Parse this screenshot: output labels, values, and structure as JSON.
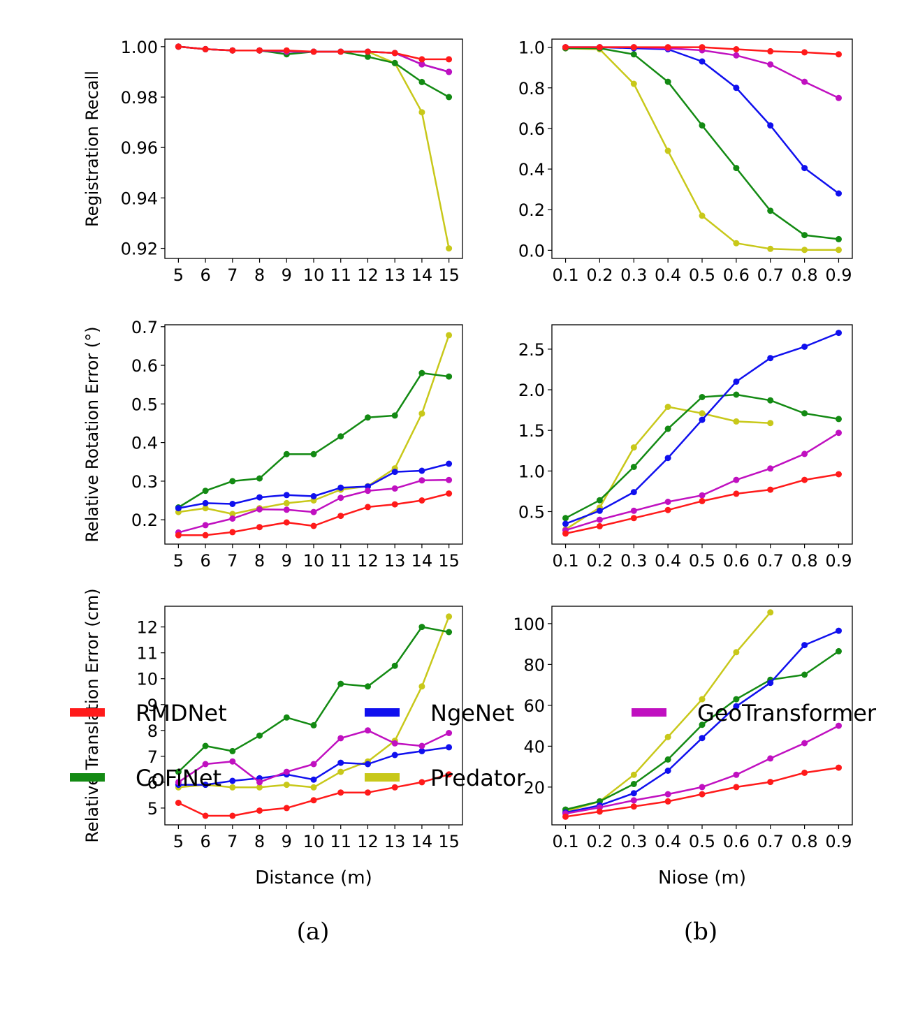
{
  "colors": {
    "RMDNet": "#ff1a1a",
    "CoFiNet": "#138a13",
    "NgeNet": "#1010ee",
    "Predator": "#c8c81a",
    "GeoTransformer": "#c010c0"
  },
  "figure": {
    "subcaption_a": "(a)",
    "subcaption_b": "(b)"
  },
  "legend": [
    {
      "label": "RMDNet",
      "color": "#ff1a1a"
    },
    {
      "label": "NgeNet",
      "color": "#1010ee"
    },
    {
      "label": "GeoTransformer",
      "color": "#c010c0"
    },
    {
      "label": "CoFiNet",
      "color": "#138a13"
    },
    {
      "label": "Predator",
      "color": "#c8c81a"
    }
  ],
  "chart_data": [
    {
      "id": "a-recall",
      "type": "line",
      "xlabel": "",
      "ylabel": "Registration Recall",
      "x": [
        5,
        6,
        7,
        8,
        9,
        10,
        11,
        12,
        13,
        14,
        15
      ],
      "xticks": [
        "5",
        "6",
        "7",
        "8",
        "9",
        "10",
        "11",
        "12",
        "13",
        "14",
        "15"
      ],
      "ylim": [
        0.916,
        1.003
      ],
      "yticks": [
        "0.92",
        "0.94",
        "0.96",
        "0.98",
        "1.00"
      ],
      "ytick_values": [
        0.92,
        0.94,
        0.96,
        0.98,
        1.0
      ],
      "series": [
        {
          "name": "Predator",
          "values": [
            1.0,
            0.999,
            0.9985,
            0.9985,
            0.998,
            0.998,
            0.998,
            0.998,
            0.9935,
            0.974,
            0.92
          ]
        },
        {
          "name": "CoFiNet",
          "values": [
            1.0,
            0.999,
            0.9985,
            0.9985,
            0.997,
            0.998,
            0.998,
            0.996,
            0.9935,
            0.986,
            0.98
          ]
        },
        {
          "name": "NgeNet",
          "values": [
            1.0,
            0.999,
            0.9985,
            0.9985,
            0.998,
            0.998,
            0.998,
            0.998,
            0.9975,
            0.993,
            0.99
          ]
        },
        {
          "name": "GeoTransformer",
          "values": [
            1.0,
            0.999,
            0.9985,
            0.9985,
            0.998,
            0.998,
            0.998,
            0.998,
            0.9975,
            0.993,
            0.99
          ]
        },
        {
          "name": "RMDNet",
          "values": [
            1.0,
            0.999,
            0.9985,
            0.9985,
            0.9985,
            0.998,
            0.998,
            0.998,
            0.9975,
            0.995,
            0.995
          ]
        }
      ]
    },
    {
      "id": "b-recall",
      "type": "line",
      "xlabel": "",
      "ylabel": "",
      "x": [
        0.1,
        0.2,
        0.3,
        0.4,
        0.5,
        0.6,
        0.7,
        0.8,
        0.9
      ],
      "xticks": [
        "0.1",
        "0.2",
        "0.3",
        "0.4",
        "0.5",
        "0.6",
        "0.7",
        "0.8",
        "0.9"
      ],
      "ylim": [
        -0.04,
        1.04
      ],
      "yticks": [
        "0.0",
        "0.2",
        "0.4",
        "0.6",
        "0.8",
        "1.0"
      ],
      "ytick_values": [
        0,
        0.2,
        0.4,
        0.6,
        0.8,
        1.0
      ],
      "series": [
        {
          "name": "Predator",
          "values": [
            0.995,
            0.99,
            0.82,
            0.49,
            0.17,
            0.035,
            0.007,
            0.002,
            0.002
          ]
        },
        {
          "name": "CoFiNet",
          "values": [
            0.995,
            0.995,
            0.965,
            0.83,
            0.615,
            0.405,
            0.195,
            0.075,
            0.055
          ]
        },
        {
          "name": "NgeNet",
          "values": [
            1.0,
            1.0,
            0.995,
            0.99,
            0.93,
            0.8,
            0.615,
            0.405,
            0.28
          ]
        },
        {
          "name": "GeoTransformer",
          "values": [
            1.0,
            1.0,
            1.0,
            0.995,
            0.985,
            0.96,
            0.915,
            0.83,
            0.75
          ]
        },
        {
          "name": "RMDNet",
          "values": [
            1.0,
            1.0,
            1.0,
            1.0,
            1.0,
            0.99,
            0.98,
            0.975,
            0.965
          ]
        }
      ]
    },
    {
      "id": "a-rre",
      "type": "line",
      "xlabel": "",
      "ylabel": "Relative Rotation Error (°)",
      "x": [
        5,
        6,
        7,
        8,
        9,
        10,
        11,
        12,
        13,
        14,
        15
      ],
      "xticks": [
        "5",
        "6",
        "7",
        "8",
        "9",
        "10",
        "11",
        "12",
        "13",
        "14",
        "15"
      ],
      "ylim": [
        0.137,
        0.705
      ],
      "yticks": [
        "0.2",
        "0.3",
        "0.4",
        "0.5",
        "0.6",
        "0.7"
      ],
      "ytick_values": [
        0.2,
        0.3,
        0.4,
        0.5,
        0.6,
        0.7
      ],
      "series": [
        {
          "name": "Predator",
          "values": [
            0.22,
            0.23,
            0.215,
            0.23,
            0.243,
            0.25,
            0.278,
            0.287,
            0.333,
            0.475,
            0.678
          ]
        },
        {
          "name": "CoFiNet",
          "values": [
            0.232,
            0.275,
            0.3,
            0.307,
            0.37,
            0.37,
            0.416,
            0.465,
            0.47,
            0.58,
            0.571
          ]
        },
        {
          "name": "NgeNet",
          "values": [
            0.23,
            0.243,
            0.241,
            0.258,
            0.264,
            0.261,
            0.283,
            0.286,
            0.324,
            0.327,
            0.345
          ]
        },
        {
          "name": "GeoTransformer",
          "values": [
            0.167,
            0.186,
            0.203,
            0.227,
            0.226,
            0.22,
            0.257,
            0.275,
            0.281,
            0.302,
            0.303
          ]
        },
        {
          "name": "RMDNet",
          "values": [
            0.16,
            0.16,
            0.168,
            0.181,
            0.193,
            0.184,
            0.21,
            0.233,
            0.24,
            0.25,
            0.268
          ]
        }
      ]
    },
    {
      "id": "b-rre",
      "type": "line",
      "xlabel": "",
      "ylabel": "",
      "x": [
        0.1,
        0.2,
        0.3,
        0.4,
        0.5,
        0.6,
        0.7,
        0.8,
        0.9
      ],
      "xticks": [
        "0.1",
        "0.2",
        "0.3",
        "0.4",
        "0.5",
        "0.6",
        "0.7",
        "0.8",
        "0.9"
      ],
      "ylim": [
        0.1,
        2.8
      ],
      "yticks": [
        "0.5",
        "1.0",
        "1.5",
        "2.0",
        "2.5"
      ],
      "ytick_values": [
        0.5,
        1.0,
        1.5,
        2.0,
        2.5
      ],
      "series": [
        {
          "name": "Predator",
          "values": [
            0.28,
            0.55,
            1.29,
            1.79,
            1.71,
            1.61,
            1.59,
            null,
            null
          ]
        },
        {
          "name": "CoFiNet",
          "values": [
            0.42,
            0.64,
            1.05,
            1.52,
            1.91,
            1.94,
            1.87,
            1.71,
            1.64
          ]
        },
        {
          "name": "NgeNet",
          "values": [
            0.35,
            0.51,
            0.74,
            1.16,
            1.63,
            2.1,
            2.39,
            2.53,
            2.7
          ]
        },
        {
          "name": "GeoTransformer",
          "values": [
            0.27,
            0.4,
            0.51,
            0.62,
            0.7,
            0.89,
            1.03,
            1.21,
            1.47
          ]
        },
        {
          "name": "RMDNet",
          "values": [
            0.23,
            0.32,
            0.42,
            0.52,
            0.63,
            0.72,
            0.77,
            0.89,
            0.96
          ]
        }
      ]
    },
    {
      "id": "a-rte",
      "type": "line",
      "xlabel": "Distance (m)",
      "ylabel": "Relative Translation Error (cm)",
      "x": [
        5,
        6,
        7,
        8,
        9,
        10,
        11,
        12,
        13,
        14,
        15
      ],
      "xticks": [
        "5",
        "6",
        "7",
        "8",
        "9",
        "10",
        "11",
        "12",
        "13",
        "14",
        "15"
      ],
      "ylim": [
        4.35,
        12.8
      ],
      "yticks": [
        "5",
        "6",
        "7",
        "8",
        "9",
        "10",
        "11",
        "12"
      ],
      "ytick_values": [
        5,
        6,
        7,
        8,
        9,
        10,
        11,
        12
      ],
      "series": [
        {
          "name": "Predator",
          "values": [
            5.8,
            5.9,
            5.8,
            5.8,
            5.9,
            5.8,
            6.4,
            6.8,
            7.6,
            9.7,
            12.4
          ]
        },
        {
          "name": "CoFiNet",
          "values": [
            6.4,
            7.4,
            7.2,
            7.8,
            8.5,
            8.2,
            9.8,
            9.7,
            10.5,
            12.0,
            11.8
          ]
        },
        {
          "name": "NgeNet",
          "values": [
            5.9,
            5.9,
            6.05,
            6.15,
            6.3,
            6.1,
            6.75,
            6.7,
            7.05,
            7.2,
            7.35
          ]
        },
        {
          "name": "GeoTransformer",
          "values": [
            6.0,
            6.7,
            6.8,
            6.0,
            6.4,
            6.7,
            7.7,
            8.0,
            7.5,
            7.4,
            7.9
          ]
        },
        {
          "name": "RMDNet",
          "values": [
            5.2,
            4.7,
            4.7,
            4.9,
            5.0,
            5.3,
            5.6,
            5.6,
            5.8,
            6.0,
            6.3
          ]
        }
      ]
    },
    {
      "id": "b-rte",
      "type": "line",
      "xlabel": "Niose (m)",
      "ylabel": "",
      "x": [
        0.1,
        0.2,
        0.3,
        0.4,
        0.5,
        0.6,
        0.7,
        0.8,
        0.9
      ],
      "xticks": [
        "0.1",
        "0.2",
        "0.3",
        "0.4",
        "0.5",
        "0.6",
        "0.7",
        "0.8",
        "0.9"
      ],
      "ylim": [
        1.5,
        108.5
      ],
      "yticks": [
        "20",
        "40",
        "60",
        "80",
        "100"
      ],
      "ytick_values": [
        20,
        40,
        60,
        80,
        100
      ],
      "series": [
        {
          "name": "Predator",
          "values": [
            8,
            13,
            26,
            44.5,
            63,
            86,
            105.5,
            null,
            null
          ]
        },
        {
          "name": "CoFiNet",
          "values": [
            9,
            13,
            21.5,
            33.5,
            50.5,
            63,
            72.5,
            75,
            86.5
          ]
        },
        {
          "name": "NgeNet",
          "values": [
            7.5,
            11,
            17,
            28,
            44,
            59.5,
            71,
            89.5,
            96.5
          ]
        },
        {
          "name": "GeoTransformer",
          "values": [
            7,
            10,
            13.5,
            16.5,
            20,
            26,
            34,
            41.5,
            50
          ]
        },
        {
          "name": "RMDNet",
          "values": [
            5.5,
            8,
            10.5,
            13,
            16.5,
            20,
            22.5,
            27,
            29.5
          ]
        }
      ]
    }
  ]
}
